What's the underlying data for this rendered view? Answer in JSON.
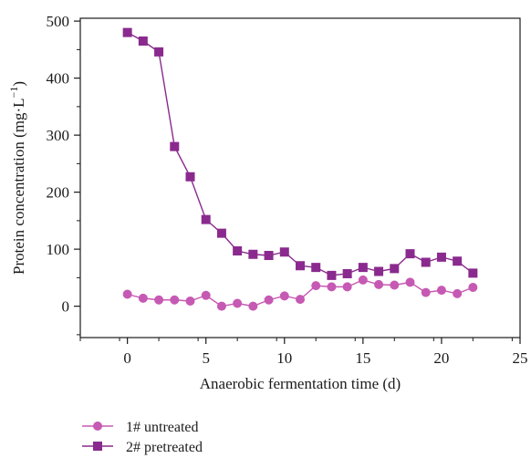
{
  "chart_data": {
    "type": "line",
    "xlabel": "Anaerobic fermentation time (d)",
    "ylabel_main": "Protein concentration (mg·L",
    "ylabel_sup": "−1",
    "ylabel_tail": ")",
    "xlim": [
      -3,
      25
    ],
    "ylim": [
      -55,
      505
    ],
    "xticks": [
      0,
      5,
      10,
      15,
      20,
      25
    ],
    "yticks": [
      0,
      100,
      200,
      300,
      400,
      500
    ],
    "x": [
      0,
      1,
      2,
      3,
      4,
      5,
      6,
      7,
      8,
      9,
      10,
      11,
      12,
      13,
      14,
      15,
      16,
      17,
      18,
      19,
      20,
      21,
      22
    ],
    "series": [
      {
        "name": "1# untreated",
        "color": "#c659b3",
        "marker": "circle",
        "values": [
          21,
          14,
          11,
          11,
          9,
          19,
          0,
          5,
          0,
          11,
          18,
          12,
          36,
          34,
          34,
          46,
          38,
          37,
          42,
          24,
          28,
          22,
          33
        ]
      },
      {
        "name": "2# pretreated",
        "color": "#8a2a8e",
        "marker": "square",
        "values": [
          480,
          465,
          446,
          280,
          227,
          152,
          128,
          97,
          91,
          89,
          95,
          71,
          68,
          54,
          57,
          68,
          61,
          66,
          92,
          77,
          86,
          79,
          58
        ]
      }
    ],
    "legend_position": "bottom-left"
  }
}
